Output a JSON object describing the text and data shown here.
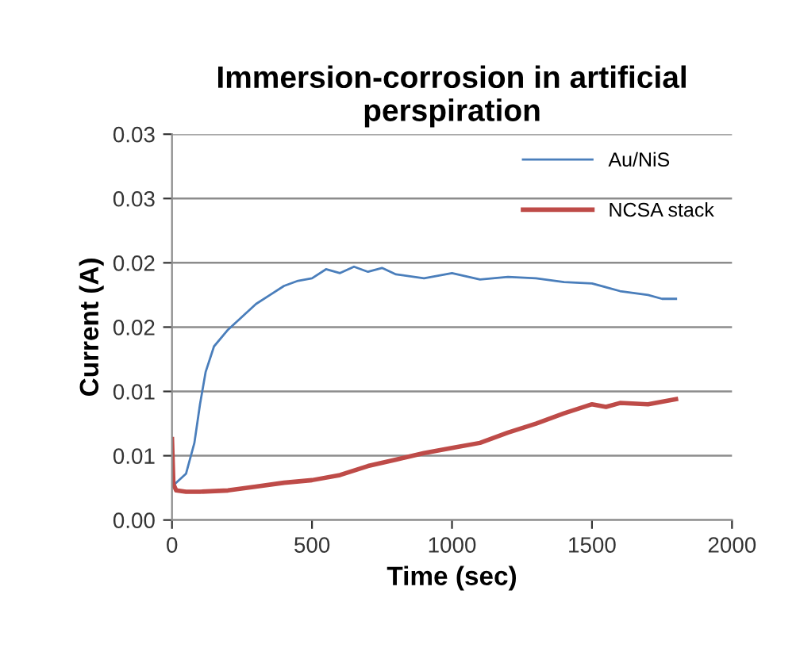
{
  "chart_data": {
    "type": "line",
    "title": "Immersion-corrosion in artificial\nperspiration",
    "xlabel": "Time (sec)",
    "ylabel": "Current (A)",
    "xlim": [
      0,
      2000
    ],
    "xticks": [
      0,
      500,
      1000,
      1500,
      2000
    ],
    "ylim": [
      0,
      0.03
    ],
    "yticks": [
      {
        "value": 0,
        "label": "0.00"
      },
      {
        "value": 0.005,
        "label": "0.01"
      },
      {
        "value": 0.01,
        "label": "0.01"
      },
      {
        "value": 0.015,
        "label": "0.02"
      },
      {
        "value": 0.02,
        "label": "0.02"
      },
      {
        "value": 0.025,
        "label": "0.03"
      },
      {
        "value": 0.03,
        "label": "0.03"
      }
    ],
    "grid": "y",
    "legend": "top right",
    "marker": "none",
    "line_style": "solid",
    "series": [
      {
        "name": "Au/NiS",
        "color": "#4a7ebb",
        "x": [
          0,
          20,
          50,
          80,
          100,
          120,
          150,
          200,
          250,
          300,
          350,
          400,
          450,
          500,
          550,
          600,
          650,
          700,
          750,
          800,
          900,
          1000,
          1100,
          1200,
          1300,
          1400,
          1500,
          1600,
          1700,
          1750,
          1800
        ],
        "values": [
          0.0026,
          0.003,
          0.0036,
          0.006,
          0.009,
          0.0115,
          0.0135,
          0.0148,
          0.0158,
          0.0168,
          0.0175,
          0.0182,
          0.0186,
          0.0188,
          0.0195,
          0.0192,
          0.0197,
          0.0193,
          0.0196,
          0.0191,
          0.0188,
          0.0192,
          0.0187,
          0.0189,
          0.0188,
          0.0185,
          0.0184,
          0.0178,
          0.0175,
          0.0172,
          0.0172
        ]
      },
      {
        "name": "NCSA stack",
        "color": "#be4b48",
        "x": [
          0,
          5,
          15,
          50,
          100,
          200,
          300,
          400,
          500,
          600,
          700,
          800,
          900,
          1000,
          1100,
          1200,
          1300,
          1400,
          1500,
          1550,
          1600,
          1700,
          1750,
          1800
        ],
        "values": [
          0.0063,
          0.0028,
          0.0023,
          0.0022,
          0.0022,
          0.0023,
          0.0026,
          0.0029,
          0.0031,
          0.0035,
          0.0042,
          0.0047,
          0.0052,
          0.0056,
          0.006,
          0.0068,
          0.0075,
          0.0083,
          0.009,
          0.0088,
          0.0091,
          0.009,
          0.0092,
          0.0094
        ]
      }
    ]
  }
}
